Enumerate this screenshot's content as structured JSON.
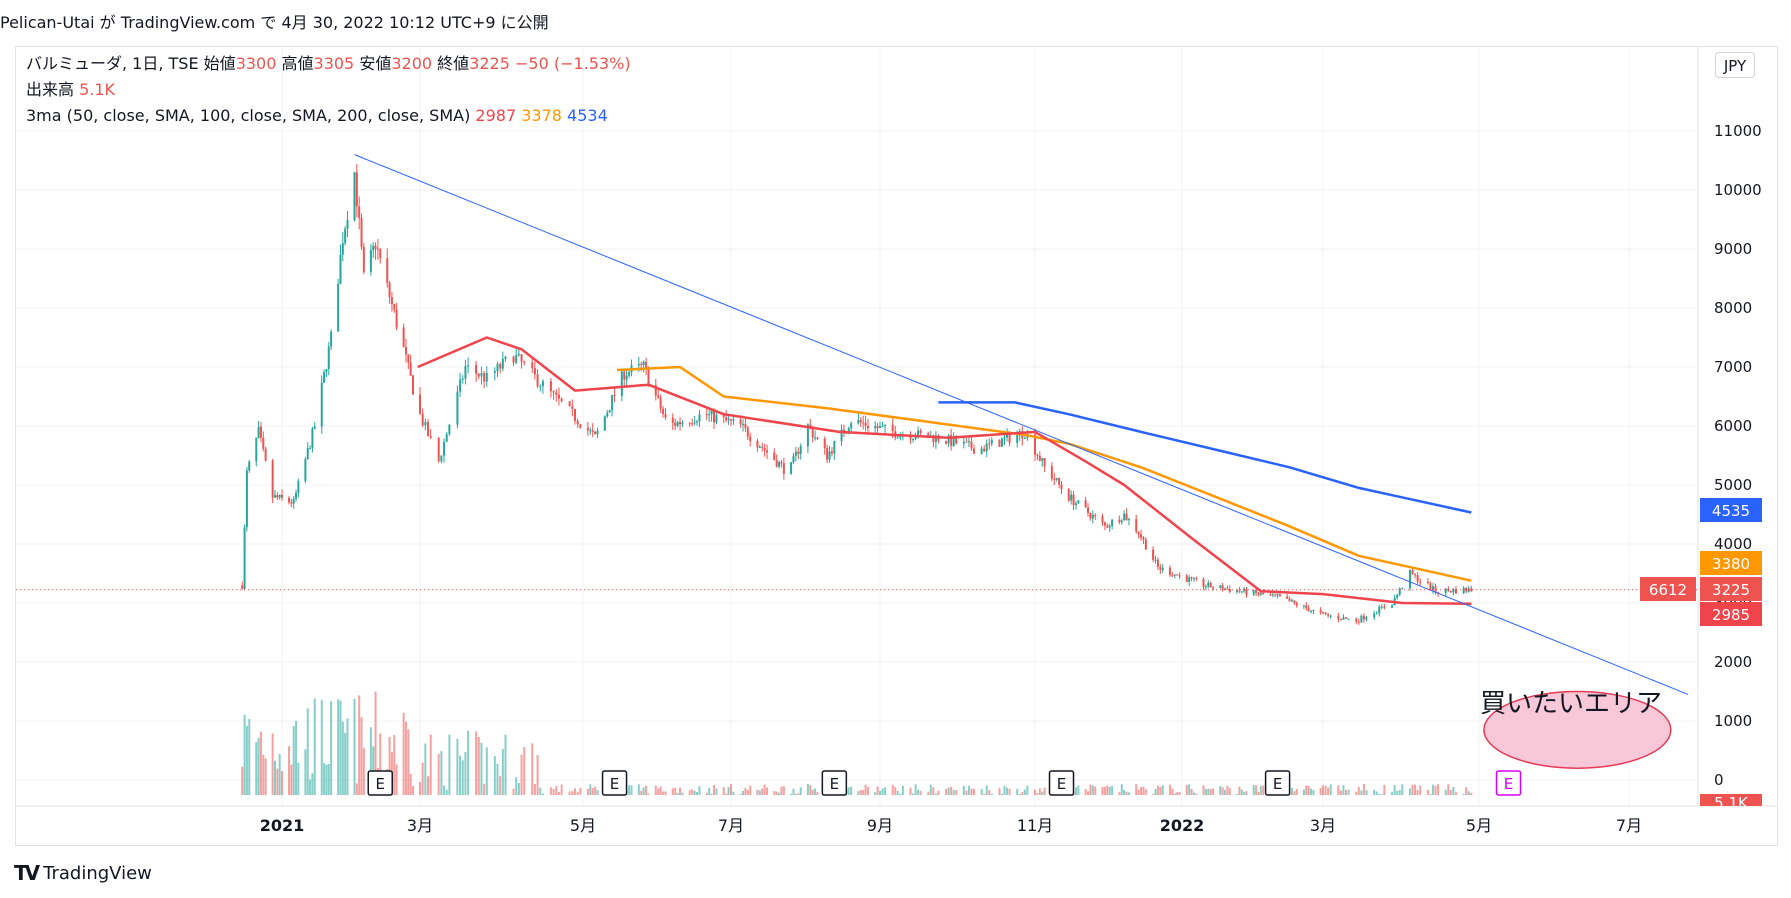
{
  "header": {
    "publisher": "Pelican-Utai",
    "text_ga": "が",
    "site": "TradingView.com",
    "text_de": "で",
    "date": "4月 30, 2022 10:12 UTC+9",
    "text_published": "に公開"
  },
  "legend": {
    "symbol": "バルミューダ, 1日, TSE",
    "open_label": "始値",
    "open": "3300",
    "high_label": "高値",
    "high": "3305",
    "low_label": "安値",
    "low": "3200",
    "close_label": "終値",
    "close": "3225",
    "change": "−50 (−1.53%)",
    "volume_label": "出来高",
    "volume": "5.1K",
    "ma_label": "3ma (50, close, SMA, 100, close, SMA, 200, close, SMA)",
    "ma50": "2987",
    "ma100": "3378",
    "ma200": "4534"
  },
  "currency": "JPY",
  "price_labels": {
    "ma200": "4535",
    "ma100": "3380",
    "close": "3225",
    "ma50": "2985",
    "volume_left": "6612",
    "volume_bottom": "5.1K"
  },
  "annotation": "買いたいエリア",
  "earnings_marker": "E",
  "footer": {
    "brand": "TradingView",
    "logo": "TV"
  },
  "colors": {
    "up": "#26a69a",
    "down": "#ef5350",
    "ma50": "#f0444c",
    "ma100": "#ff9800",
    "ma200": "#2962ff",
    "trendline": "#2962ff",
    "area_fill": "#f8c8d8",
    "area_stroke": "#e53957"
  },
  "chart_data": {
    "type": "candlestick",
    "title": "",
    "x_tick_labels": [
      "2021",
      "3月",
      "5月",
      "7月",
      "9月",
      "11月",
      "2022",
      "3月",
      "5月",
      "7月"
    ],
    "y_tick_labels": [
      "11000",
      "10000",
      "9000",
      "8000",
      "7000",
      "6000",
      "5000",
      "4000",
      "3000",
      "2000",
      "1000",
      "0"
    ],
    "ylim": [
      -400,
      12300
    ],
    "x_range_months": [
      "2020-12",
      "2022-07"
    ],
    "price_anchors": [
      {
        "date": "2020-12-15",
        "value": 3300
      },
      {
        "date": "2020-12-17",
        "value": 5200
      },
      {
        "date": "2020-12-22",
        "value": 5900
      },
      {
        "date": "2020-12-28",
        "value": 4800
      },
      {
        "date": "2021-01-06",
        "value": 4700
      },
      {
        "date": "2021-01-15",
        "value": 6000
      },
      {
        "date": "2021-01-22",
        "value": 7500
      },
      {
        "date": "2021-01-27",
        "value": 9200
      },
      {
        "date": "2021-02-01",
        "value": 10300
      },
      {
        "date": "2021-02-05",
        "value": 8500
      },
      {
        "date": "2021-02-10",
        "value": 9100
      },
      {
        "date": "2021-02-16",
        "value": 8200
      },
      {
        "date": "2021-02-22",
        "value": 7300
      },
      {
        "date": "2021-02-28",
        "value": 6300
      },
      {
        "date": "2021-03-08",
        "value": 5400
      },
      {
        "date": "2021-03-18",
        "value": 7000
      },
      {
        "date": "2021-03-26",
        "value": 6800
      },
      {
        "date": "2021-04-05",
        "value": 7200
      },
      {
        "date": "2021-04-20",
        "value": 6500
      },
      {
        "date": "2021-05-06",
        "value": 5800
      },
      {
        "date": "2021-05-18",
        "value": 6900
      },
      {
        "date": "2021-05-26",
        "value": 7000
      },
      {
        "date": "2021-06-05",
        "value": 6000
      },
      {
        "date": "2021-06-20",
        "value": 6200
      },
      {
        "date": "2021-07-05",
        "value": 6000
      },
      {
        "date": "2021-07-25",
        "value": 5200
      },
      {
        "date": "2021-08-02",
        "value": 6000
      },
      {
        "date": "2021-08-10",
        "value": 5500
      },
      {
        "date": "2021-08-20",
        "value": 6100
      },
      {
        "date": "2021-09-06",
        "value": 5900
      },
      {
        "date": "2021-09-24",
        "value": 5800
      },
      {
        "date": "2021-10-10",
        "value": 5600
      },
      {
        "date": "2021-10-28",
        "value": 5900
      },
      {
        "date": "2021-11-05",
        "value": 5300
      },
      {
        "date": "2021-11-15",
        "value": 4800
      },
      {
        "date": "2021-11-30",
        "value": 4300
      },
      {
        "date": "2021-12-08",
        "value": 4500
      },
      {
        "date": "2021-12-14",
        "value": 4200
      },
      {
        "date": "2021-12-22",
        "value": 3600
      },
      {
        "date": "2022-01-10",
        "value": 3300
      },
      {
        "date": "2022-02-10",
        "value": 3100
      },
      {
        "date": "2022-03-01",
        "value": 2800
      },
      {
        "date": "2022-03-14",
        "value": 2700
      },
      {
        "date": "2022-03-28",
        "value": 3000
      },
      {
        "date": "2022-04-04",
        "value": 3500
      },
      {
        "date": "2022-04-14",
        "value": 3200
      },
      {
        "date": "2022-04-28",
        "value": 3225
      }
    ],
    "ma50": [
      {
        "date": "2021-02-28",
        "value": 7000
      },
      {
        "date": "2021-03-26",
        "value": 7500
      },
      {
        "date": "2021-04-08",
        "value": 7300
      },
      {
        "date": "2021-04-28",
        "value": 6600
      },
      {
        "date": "2021-05-28",
        "value": 6700
      },
      {
        "date": "2021-06-28",
        "value": 6200
      },
      {
        "date": "2021-08-15",
        "value": 5900
      },
      {
        "date": "2021-09-28",
        "value": 5800
      },
      {
        "date": "2021-11-01",
        "value": 5900
      },
      {
        "date": "2021-11-22",
        "value": 5400
      },
      {
        "date": "2021-12-08",
        "value": 5000
      },
      {
        "date": "2022-01-05",
        "value": 4100
      },
      {
        "date": "2022-02-03",
        "value": 3200
      },
      {
        "date": "2022-03-01",
        "value": 3150
      },
      {
        "date": "2022-04-01",
        "value": 3000
      },
      {
        "date": "2022-04-28",
        "value": 2987
      }
    ],
    "ma100": [
      {
        "date": "2021-05-15",
        "value": 6950
      },
      {
        "date": "2021-06-10",
        "value": 7000
      },
      {
        "date": "2021-06-28",
        "value": 6500
      },
      {
        "date": "2021-08-10",
        "value": 6300
      },
      {
        "date": "2021-09-15",
        "value": 6100
      },
      {
        "date": "2021-10-28",
        "value": 5850
      },
      {
        "date": "2021-11-15",
        "value": 5700
      },
      {
        "date": "2021-12-15",
        "value": 5300
      },
      {
        "date": "2022-01-15",
        "value": 4800
      },
      {
        "date": "2022-02-15",
        "value": 4300
      },
      {
        "date": "2022-03-15",
        "value": 3800
      },
      {
        "date": "2022-04-28",
        "value": 3378
      }
    ],
    "ma200": [
      {
        "date": "2021-09-24",
        "value": 6400
      },
      {
        "date": "2021-10-24",
        "value": 6400
      },
      {
        "date": "2021-11-15",
        "value": 6200
      },
      {
        "date": "2021-12-15",
        "value": 5900
      },
      {
        "date": "2022-01-15",
        "value": 5600
      },
      {
        "date": "2022-02-15",
        "value": 5300
      },
      {
        "date": "2022-03-15",
        "value": 4950
      },
      {
        "date": "2022-04-28",
        "value": 4534
      }
    ],
    "trendline": [
      {
        "date": "2021-02-01",
        "value": 10600
      },
      {
        "date": "2022-07-25",
        "value": 1450
      }
    ],
    "earnings_dates": [
      "2021-02-12",
      "2021-05-14",
      "2021-08-13",
      "2021-11-12",
      "2022-02-10",
      "2022-05-13"
    ],
    "buy_area_price_range": [
      200,
      1500
    ],
    "buy_area_date_range": [
      "2022-05-03",
      "2022-07-18"
    ]
  }
}
